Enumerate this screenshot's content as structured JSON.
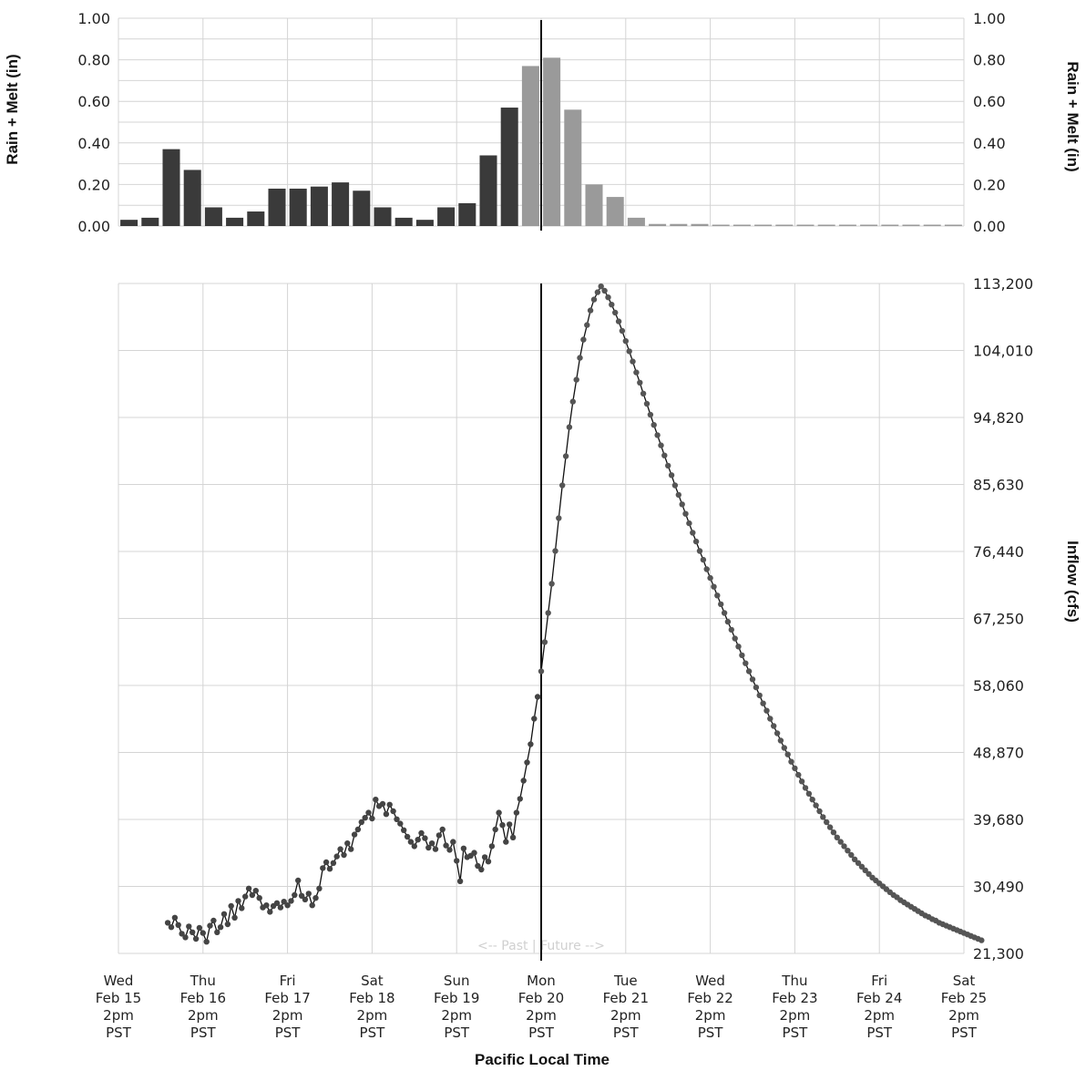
{
  "chart_data": [
    {
      "type": "bar",
      "ylabel": "Rain + Melt (in)",
      "ylim": [
        0,
        1.0
      ],
      "yticks": [
        "0.00",
        "0.20",
        "0.40",
        "0.60",
        "0.80",
        "1.00"
      ],
      "x_start": "Wed Feb 15 2pm PST",
      "interval_hours": 6,
      "series": [
        {
          "values": [
            0.03,
            0.04,
            0.37,
            0.27,
            0.09,
            0.04,
            0.07,
            0.18,
            0.18,
            0.19,
            0.21,
            0.17,
            0.09,
            0.04,
            0.03,
            0.09,
            0.11,
            0.34,
            0.57
          ],
          "color": "#3a3a3a"
        },
        {
          "values": [
            0.77,
            0.81,
            0.56,
            0.2,
            0.14,
            0.04,
            0.01,
            0.01,
            0.01,
            0.005,
            0.005,
            0.005,
            0.005,
            0.005,
            0.005,
            0.005,
            0.005,
            0.005,
            0.005,
            0.005,
            0.005
          ],
          "color": "#9a9a9a"
        }
      ]
    },
    {
      "type": "line",
      "xlabel": "Pacific Local Time",
      "ylabel": "Inflow (cfs)",
      "ylim": [
        21300,
        113200
      ],
      "yticks": [
        "113,200",
        "104,010",
        "94,820",
        "85,630",
        "76,440",
        "67,250",
        "58,060",
        "48,870",
        "39,680",
        "30,490",
        "21,300"
      ],
      "xticks": [
        {
          "day": "Wed",
          "date": "Feb 15",
          "time": "2pm",
          "tz": "PST"
        },
        {
          "day": "Thu",
          "date": "Feb 16",
          "time": "2pm",
          "tz": "PST"
        },
        {
          "day": "Fri",
          "date": "Feb 17",
          "time": "2pm",
          "tz": "PST"
        },
        {
          "day": "Sat",
          "date": "Feb 18",
          "time": "2pm",
          "tz": "PST"
        },
        {
          "day": "Sun",
          "date": "Feb 19",
          "time": "2pm",
          "tz": "PST"
        },
        {
          "day": "Mon",
          "date": "Feb 20",
          "time": "2pm",
          "tz": "PST"
        },
        {
          "day": "Tue",
          "date": "Feb 21",
          "time": "2pm",
          "tz": "PST"
        },
        {
          "day": "Wed",
          "date": "Feb 22",
          "time": "2pm",
          "tz": "PST"
        },
        {
          "day": "Thu",
          "date": "Feb 23",
          "time": "2pm",
          "tz": "PST"
        },
        {
          "day": "Fri",
          "date": "Feb 24",
          "time": "2pm",
          "tz": "PST"
        },
        {
          "day": "Sat",
          "date": "Feb 25",
          "time": "2pm",
          "tz": "PST"
        }
      ],
      "now_marker": "Mon Feb 20 2pm PST",
      "annotation": "<-- Past | Future -->",
      "observed": {
        "interval_hours": 1,
        "color": "#444444",
        "values": [
          25500,
          24900,
          26200,
          25200,
          24000,
          23500,
          25000,
          24200,
          23300,
          24800,
          24100,
          22900,
          25100,
          25800,
          24200,
          24900,
          26700,
          25300,
          27800,
          26200,
          28500,
          27500,
          29100,
          30200,
          29300,
          29900,
          28900,
          27600,
          27900,
          27000,
          27800,
          28200,
          27600,
          28400,
          27900,
          28500,
          29300,
          31300,
          29200,
          28700,
          29500,
          27900,
          28900,
          30200,
          33000,
          33800,
          32900,
          33700,
          34600,
          35600,
          34800,
          36400,
          35600,
          37600,
          38300,
          39300,
          39900,
          40600,
          39800,
          42400,
          41500,
          41800,
          40400,
          41700,
          40800,
          39700,
          39100,
          38200,
          37300,
          36600,
          36000,
          36900,
          37800,
          37100,
          35800,
          36400,
          35600,
          37500,
          38300,
          36100,
          35500,
          36600,
          34000,
          31200,
          35700,
          34500,
          34700,
          35100,
          33300,
          32800,
          34500,
          33900,
          36000,
          38300,
          40600,
          38900,
          36600,
          39000,
          37200,
          40600,
          42500,
          45000,
          47500,
          50000,
          53500,
          56500
        ],
        "gap_markers": [
          0
        ]
      },
      "forecast": {
        "interval_hours": 1,
        "color": "#555555",
        "values": [
          60000,
          64000,
          68000,
          72000,
          76500,
          81000,
          85500,
          89500,
          93500,
          97000,
          100000,
          103000,
          105500,
          107500,
          109500,
          111000,
          112000,
          112800,
          112200,
          111300,
          110300,
          109200,
          108000,
          106700,
          105300,
          103900,
          102500,
          101000,
          99600,
          98100,
          96700,
          95200,
          93800,
          92400,
          91000,
          89600,
          88200,
          86900,
          85500,
          84200,
          82900,
          81600,
          80300,
          79000,
          77800,
          76500,
          75300,
          74000,
          72800,
          71600,
          70400,
          69200,
          68000,
          66800,
          65700,
          64500,
          63400,
          62200,
          61100,
          60000,
          58900,
          57800,
          56700,
          55600,
          54600,
          53500,
          52500,
          51500,
          50500,
          49500,
          48600,
          47600,
          46700,
          45800,
          44900,
          44000,
          43200,
          42400,
          41600,
          40800,
          40000,
          39300,
          38600,
          37900,
          37200,
          36600,
          36000,
          35400,
          34800,
          34200,
          33700,
          33200,
          32700,
          32200,
          31700,
          31300,
          30900,
          30500,
          30100,
          29700,
          29300,
          29000,
          28600,
          28300,
          28000,
          27700,
          27400,
          27100,
          26800,
          26500,
          26300,
          26000,
          25800,
          25500,
          25300,
          25100,
          24900,
          24700,
          24500,
          24300,
          24100,
          23900,
          23700,
          23500,
          23300,
          23100
        ]
      }
    }
  ]
}
